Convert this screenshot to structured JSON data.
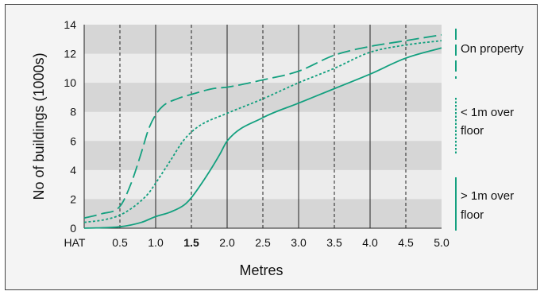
{
  "chart_data": {
    "type": "line",
    "title": "",
    "xlabel": "Metres",
    "ylabel": "No of buildings (1000s)",
    "xlim": [
      0,
      5.0
    ],
    "ylim": [
      0,
      14
    ],
    "x_ticks": [
      {
        "value": 0.0,
        "label": "HAT",
        "bold": false
      },
      {
        "value": 0.5,
        "label": "0.5",
        "bold": false
      },
      {
        "value": 1.0,
        "label": "1.0",
        "bold": false
      },
      {
        "value": 1.5,
        "label": "1.5",
        "bold": true
      },
      {
        "value": 2.0,
        "label": "2.0",
        "bold": false
      },
      {
        "value": 2.5,
        "label": "2.5",
        "bold": false
      },
      {
        "value": 3.0,
        "label": "3.0",
        "bold": false
      },
      {
        "value": 3.5,
        "label": "3.5",
        "bold": false
      },
      {
        "value": 4.0,
        "label": "4.0",
        "bold": false
      },
      {
        "value": 4.5,
        "label": "4.5",
        "bold": false
      },
      {
        "value": 5.0,
        "label": "5.0",
        "bold": false
      }
    ],
    "y_ticks": [
      {
        "value": 0,
        "label": "0"
      },
      {
        "value": 2,
        "label": "2"
      },
      {
        "value": 4,
        "label": "4"
      },
      {
        "value": 6,
        "label": "6"
      },
      {
        "value": 8,
        "label": "8"
      },
      {
        "value": 10,
        "label": "10"
      },
      {
        "value": 12,
        "label": "12"
      },
      {
        "value": 14,
        "label": "14"
      }
    ],
    "gridlines": {
      "solid_x": [
        1.0,
        2.0,
        3.0,
        4.0
      ],
      "dashed_x": [
        0.5,
        1.5,
        2.5,
        3.5,
        4.5
      ],
      "shaded_bands": [
        [
          0,
          2
        ],
        [
          4,
          6
        ],
        [
          8,
          10
        ],
        [
          12,
          14
        ]
      ]
    },
    "legend_position": "right",
    "colors": {
      "line": "#13a07f",
      "band": "#d6d6d6",
      "plot_bg": "#ececec"
    },
    "series": [
      {
        "name": "On property",
        "style": "long-dash",
        "x": [
          0.0,
          0.25,
          0.5,
          0.65,
          0.8,
          0.9,
          1.0,
          1.1,
          1.3,
          1.5,
          1.8,
          2.0,
          2.5,
          3.0,
          3.5,
          4.0,
          4.5,
          5.0
        ],
        "y": [
          0.7,
          1.0,
          1.5,
          3.0,
          5.2,
          6.8,
          7.8,
          8.4,
          8.9,
          9.2,
          9.6,
          9.7,
          10.2,
          10.8,
          11.9,
          12.5,
          12.9,
          13.3
        ]
      },
      {
        "name": "< 1m over floor",
        "style": "dotted",
        "x": [
          0.0,
          0.3,
          0.5,
          0.7,
          0.9,
          1.0,
          1.2,
          1.4,
          1.6,
          2.0,
          2.5,
          3.0,
          3.5,
          4.0,
          4.5,
          5.0
        ],
        "y": [
          0.4,
          0.6,
          0.9,
          1.5,
          2.4,
          3.1,
          4.6,
          6.1,
          7.0,
          7.9,
          8.9,
          10.0,
          11.0,
          12.1,
          12.6,
          12.9
        ]
      },
      {
        "name": "> 1m over floor",
        "style": "solid",
        "x": [
          0.0,
          0.5,
          0.8,
          1.0,
          1.2,
          1.4,
          1.5,
          1.7,
          1.9,
          2.0,
          2.5,
          3.0,
          3.5,
          4.0,
          4.5,
          5.0
        ],
        "y": [
          0.0,
          0.1,
          0.4,
          0.8,
          1.1,
          1.6,
          2.1,
          3.5,
          5.1,
          6.0,
          7.6,
          8.6,
          9.6,
          10.6,
          11.7,
          12.4
        ]
      }
    ],
    "legend": [
      {
        "series": 0,
        "lines": [
          "On property"
        ]
      },
      {
        "series": 1,
        "lines": [
          "< 1m over",
          "floor"
        ]
      },
      {
        "series": 2,
        "lines": [
          "> 1m over",
          "floor"
        ]
      }
    ]
  }
}
